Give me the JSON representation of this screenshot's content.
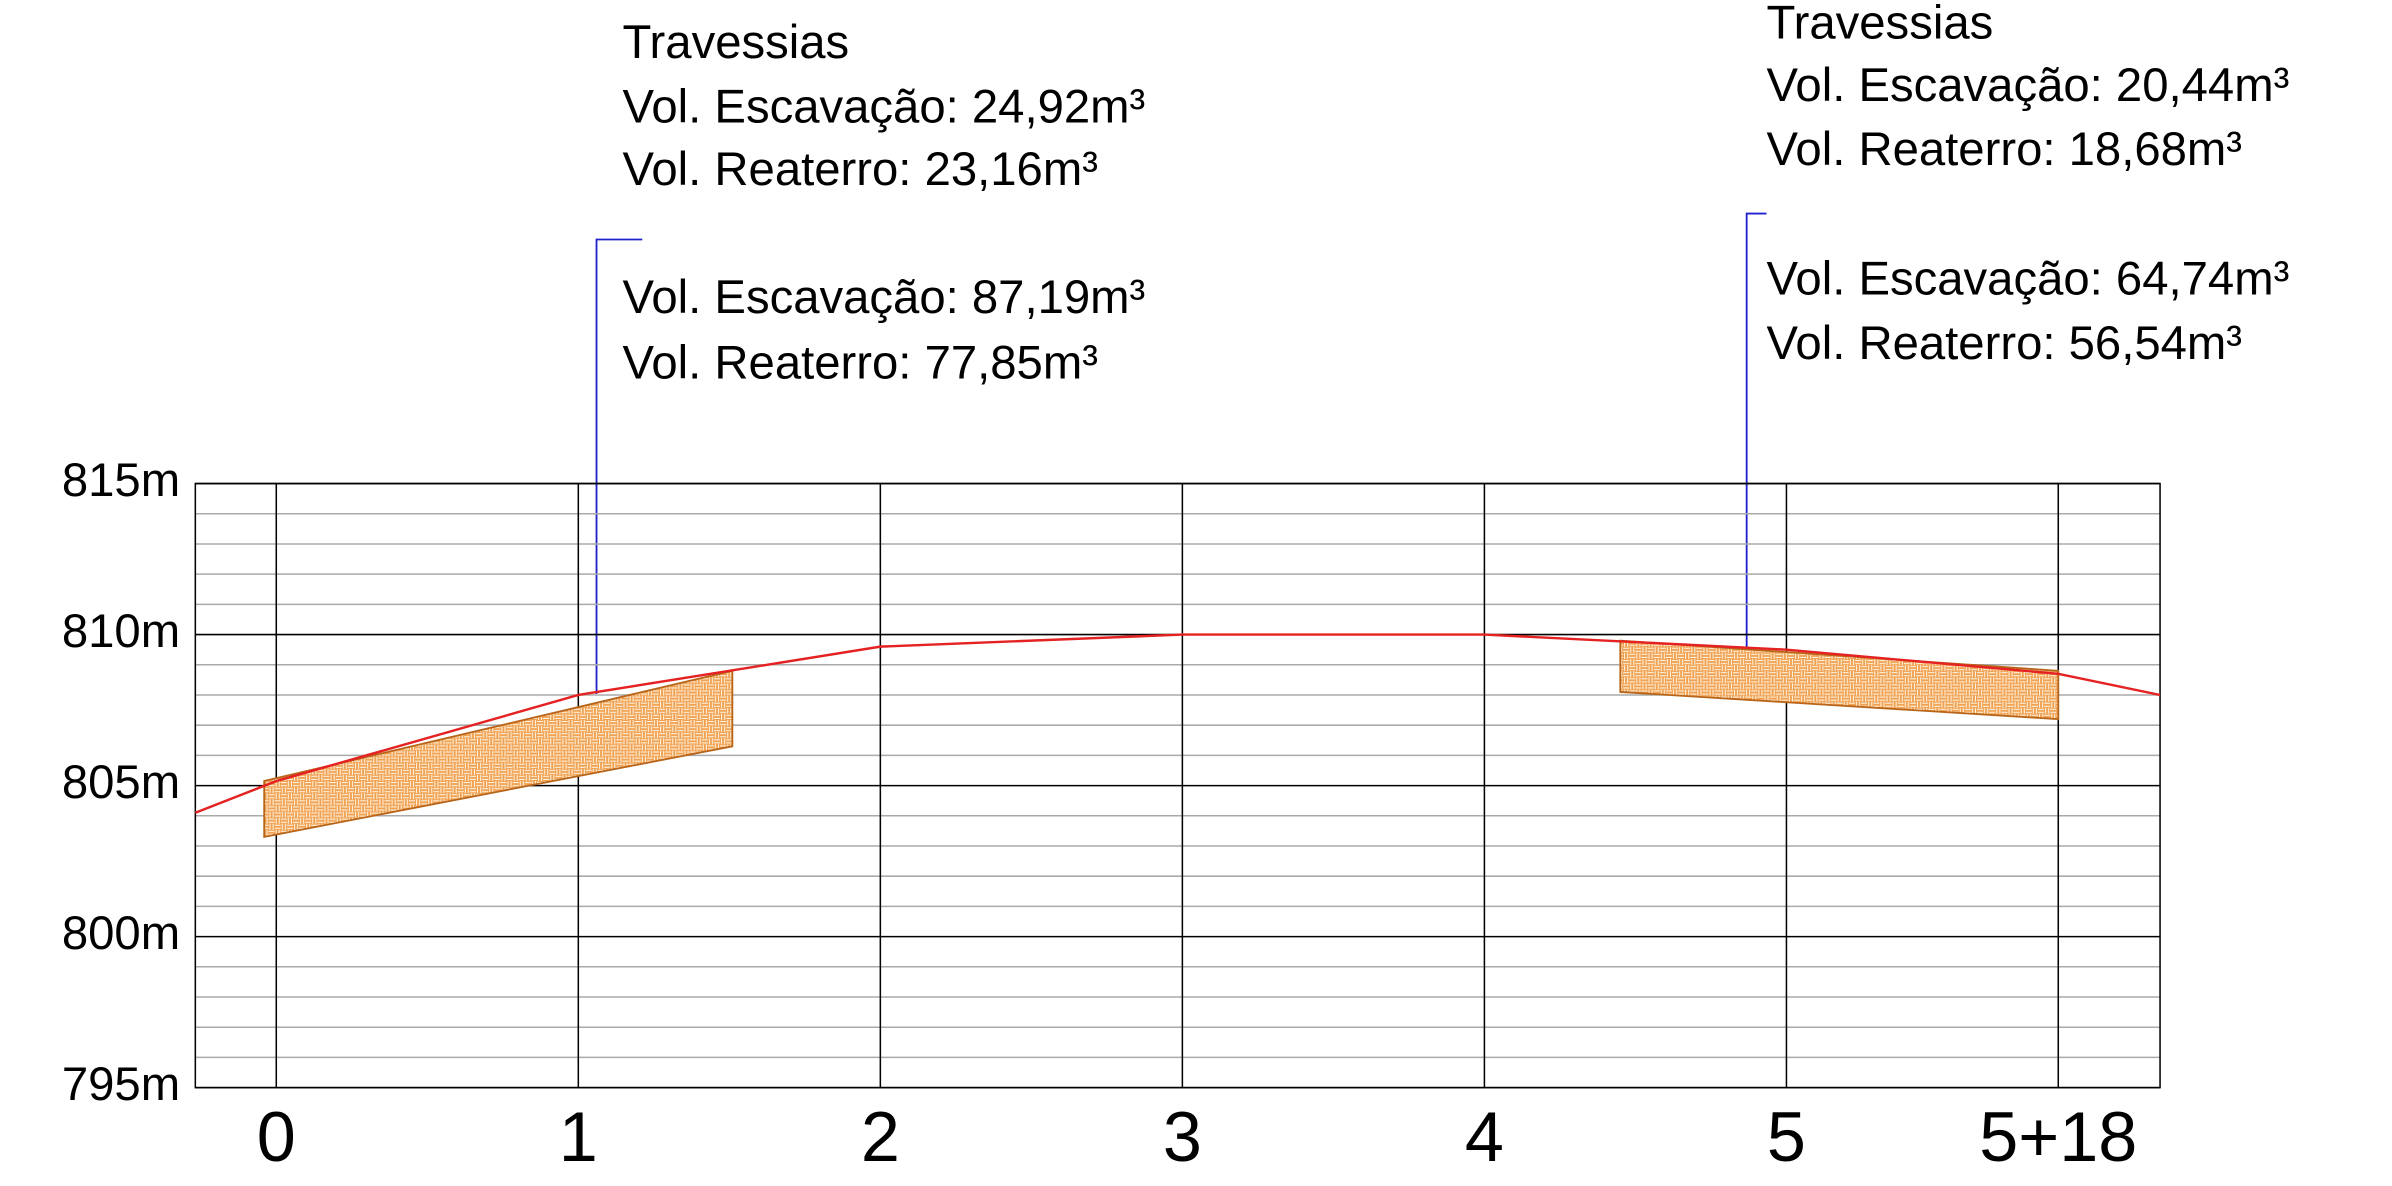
{
  "chart_data": {
    "type": "line",
    "x": [
      -0.268,
      0,
      1,
      2,
      3,
      4,
      5,
      5.9,
      6.237
    ],
    "series": [
      {
        "color": "#e52222",
        "values": [
          804.1,
          805.15,
          808.0,
          809.6,
          810.0,
          810.0,
          809.5,
          808.7,
          808.0
        ]
      }
    ],
    "areas": [
      {
        "color": "#f0a050",
        "x": [
          -0.04,
          1.51,
          1.51,
          -0.04
        ],
        "values": [
          805.15,
          808.8,
          806.3,
          803.3
        ]
      },
      {
        "color": "#f0a050",
        "x": [
          4.45,
          5.9,
          5.9,
          4.45
        ],
        "values": [
          809.8,
          808.8,
          807.2,
          808.1
        ]
      }
    ],
    "xlim": [
      -0.268,
      6.237
    ],
    "xticks": [
      0,
      1,
      2,
      3,
      4,
      5,
      {
        "value": 5.9,
        "label": "5+18"
      }
    ],
    "ylim": [
      795,
      815
    ],
    "yticks": [
      {
        "value": 795,
        "label": "795m"
      },
      {
        "value": 800,
        "label": "800m"
      },
      {
        "value": 805,
        "label": "805m"
      },
      {
        "value": 810,
        "label": "810m"
      },
      {
        "value": 815,
        "label": "815m"
      }
    ],
    "yminor": [
      796,
      797,
      798,
      799,
      801,
      802,
      803,
      804,
      806,
      807,
      808,
      809,
      811,
      812,
      813,
      814
    ],
    "grid": true,
    "annotations": [
      {
        "lines": [
          "Travessias",
          "Vol. Escavação: 24,92m³",
          "Vol. Reaterro: 23,16m³",
          "Vol. Escavação: 87,19m³",
          "Vol. Reaterro: 77,85m³"
        ]
      },
      {
        "lines": [
          "Travessias",
          "Vol. Escavação: 20,44m³",
          "Vol. Reaterro: 18,68m³",
          "Vol. Escavação: 64,74m³",
          "Vol. Reaterro: 56,54m³"
        ]
      }
    ]
  }
}
